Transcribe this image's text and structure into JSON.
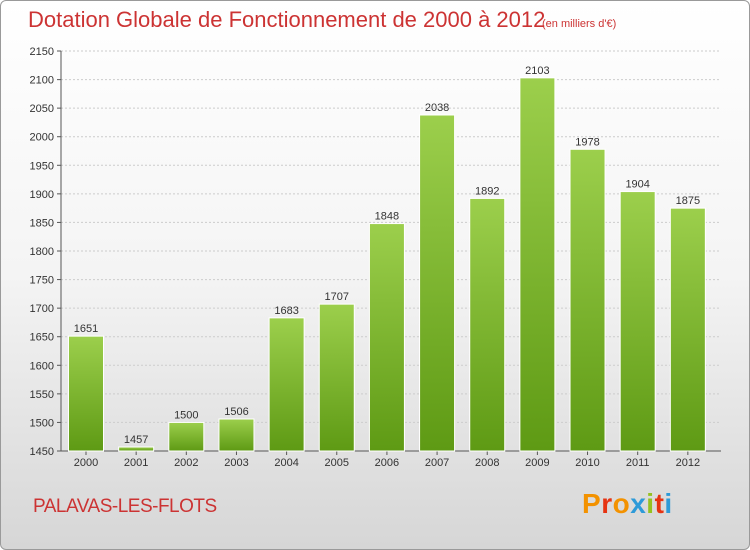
{
  "header": {
    "title": "Dotation Globale de Fonctionnement de 2000 à 2012",
    "unit_note": "(en milliers d'€)"
  },
  "footer": {
    "commune": "PALAVAS-LES-FLOTS",
    "logo": "Proxiti",
    "logo_colors": [
      "#f39200",
      "#e63312",
      "#f39200",
      "#2d9ad8",
      "#95c11f",
      "#e63312",
      "#2d9ad8"
    ]
  },
  "colors": {
    "bar_top": "#9ccf4c",
    "bar_bottom": "#5e9a14",
    "text": "#cc3333",
    "grid": "#cccccc"
  },
  "chart_data": {
    "type": "bar",
    "categories": [
      "2000",
      "2001",
      "2002",
      "2003",
      "2004",
      "2005",
      "2006",
      "2007",
      "2008",
      "2009",
      "2010",
      "2011",
      "2012"
    ],
    "values": [
      1651,
      1457,
      1500,
      1506,
      1683,
      1707,
      1848,
      2038,
      1892,
      2103,
      1978,
      1904,
      1875
    ],
    "ylim": [
      1450,
      2150
    ],
    "yticks": [
      1450,
      1500,
      1550,
      1600,
      1650,
      1700,
      1750,
      1800,
      1850,
      1900,
      1950,
      2000,
      2050,
      2100,
      2150
    ],
    "grid": true,
    "legend": "none"
  }
}
